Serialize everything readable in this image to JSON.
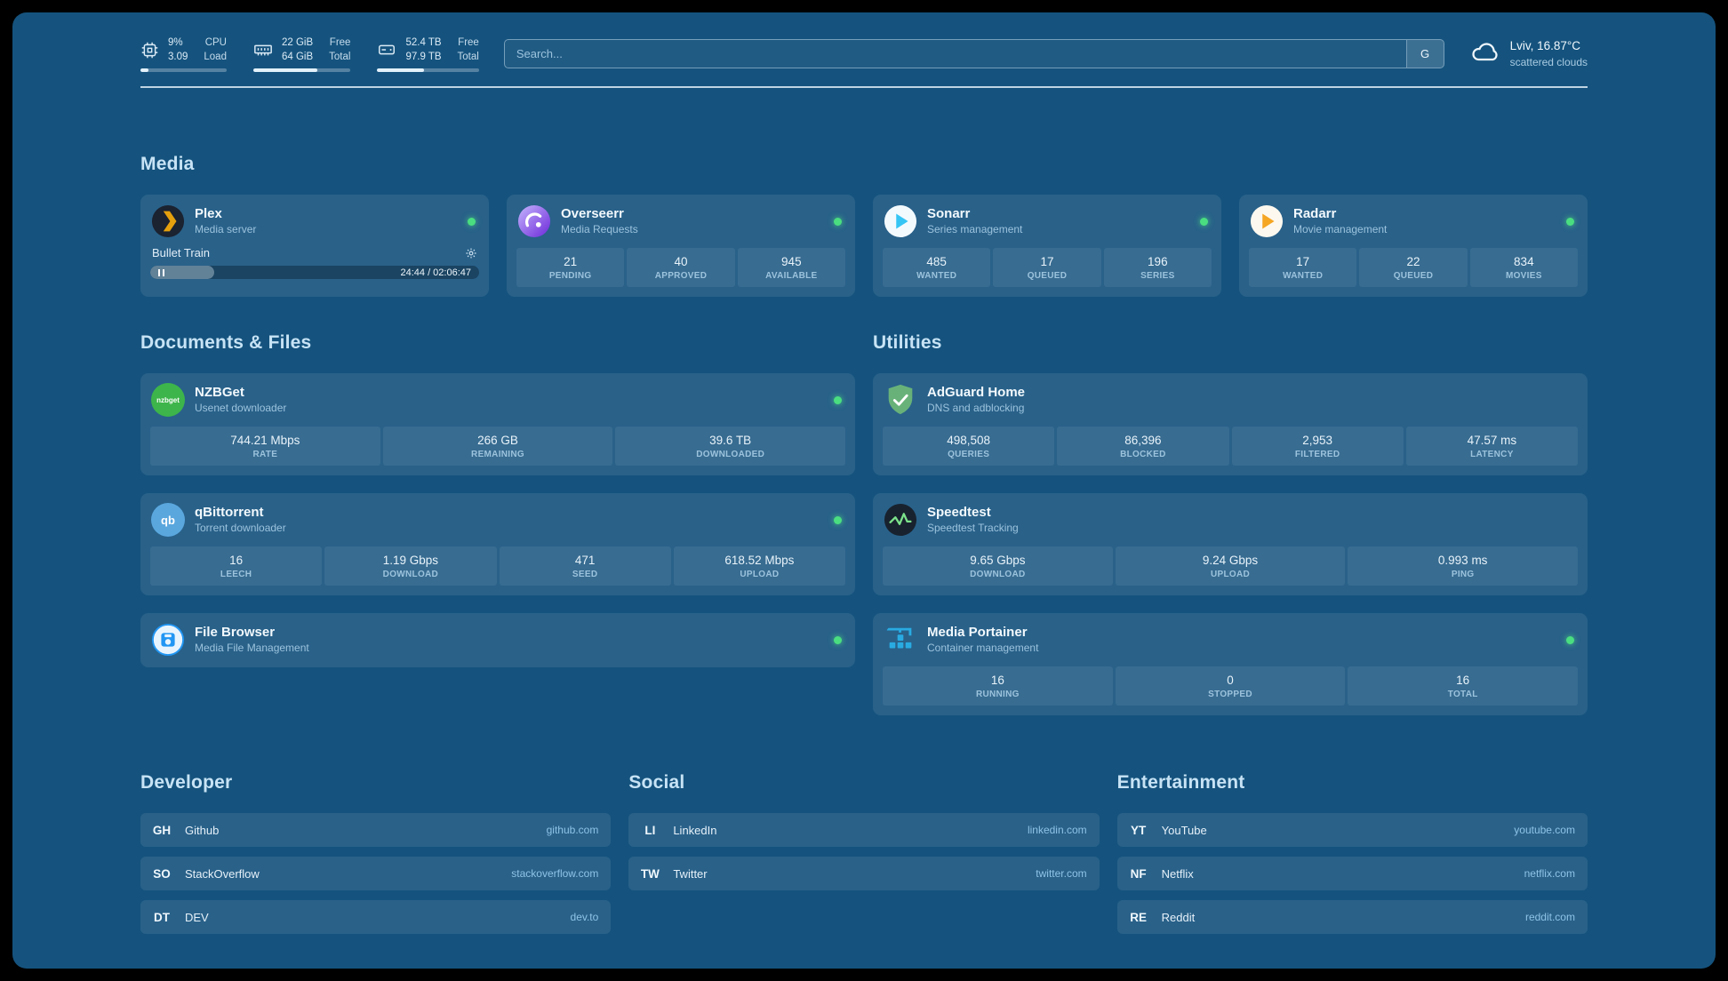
{
  "theme": {
    "background": "#15537e",
    "card_overlay": "rgba(255,255,255,0.085)",
    "status_online_color": "#4ade80",
    "plex_orange": "#e5a00d",
    "radarr_orange": "#f5a623",
    "sonarr_blue": "#35c5f4",
    "nzbget_green": "#3db54a",
    "qbittorrent_blue": "#5aa7de",
    "adguard_green": "#68b279",
    "overseerr_purple": "#6d28d9",
    "portainer_blue": "#29abe2"
  },
  "topbar": {
    "resources": [
      {
        "icon": "cpu-icon",
        "value_top": "9%",
        "value_bottom": "3.09",
        "label_top": "CPU",
        "label_bottom": "Load",
        "progress_pct": 9
      },
      {
        "icon": "memory-icon",
        "value_top": "22 GiB",
        "value_bottom": "64 GiB",
        "label_top": "Free",
        "label_bottom": "Total",
        "progress_pct": 66
      },
      {
        "icon": "disk-icon",
        "value_top": "52.4 TB",
        "value_bottom": "97.9 TB",
        "label_top": "Free",
        "label_bottom": "Total",
        "progress_pct": 46
      }
    ],
    "search": {
      "placeholder": "Search...",
      "provider_button": "G"
    },
    "weather": {
      "location": "Lviv, 16.87°C",
      "condition": "scattered clouds"
    }
  },
  "sections": {
    "media": {
      "title": "Media",
      "plex": {
        "name": "Plex",
        "desc": "Media server",
        "status": "online",
        "now_playing": {
          "title": "Bullet Train",
          "time": "24:44 / 02:06:47",
          "progress_pct": 19.5
        }
      },
      "overseerr": {
        "name": "Overseerr",
        "desc": "Media Requests",
        "status": "online",
        "stats": [
          {
            "value": "21",
            "label": "PENDING"
          },
          {
            "value": "40",
            "label": "APPROVED"
          },
          {
            "value": "945",
            "label": "AVAILABLE"
          }
        ]
      },
      "sonarr": {
        "name": "Sonarr",
        "desc": "Series management",
        "status": "online",
        "stats": [
          {
            "value": "485",
            "label": "WANTED"
          },
          {
            "value": "17",
            "label": "QUEUED"
          },
          {
            "value": "196",
            "label": "SERIES"
          }
        ]
      },
      "radarr": {
        "name": "Radarr",
        "desc": "Movie management",
        "status": "online",
        "stats": [
          {
            "value": "17",
            "label": "WANTED"
          },
          {
            "value": "22",
            "label": "QUEUED"
          },
          {
            "value": "834",
            "label": "MOVIES"
          }
        ]
      }
    },
    "documents": {
      "title": "Documents & Files",
      "nzbget": {
        "name": "NZBGet",
        "desc": "Usenet downloader",
        "status": "online",
        "icon_text": "nzbget",
        "stats": [
          {
            "value": "744.21 Mbps",
            "label": "RATE"
          },
          {
            "value": "266 GB",
            "label": "REMAINING"
          },
          {
            "value": "39.6 TB",
            "label": "DOWNLOADED"
          }
        ]
      },
      "qbittorrent": {
        "name": "qBittorrent",
        "desc": "Torrent downloader",
        "status": "online",
        "icon_text": "qb",
        "stats": [
          {
            "value": "16",
            "label": "LEECH"
          },
          {
            "value": "1.19 Gbps",
            "label": "DOWNLOAD"
          },
          {
            "value": "471",
            "label": "SEED"
          },
          {
            "value": "618.52 Mbps",
            "label": "UPLOAD"
          }
        ]
      },
      "filebrowser": {
        "name": "File Browser",
        "desc": "Media File Management",
        "status": "online"
      }
    },
    "utilities": {
      "title": "Utilities",
      "adguard": {
        "name": "AdGuard Home",
        "desc": "DNS and adblocking",
        "stats": [
          {
            "value": "498,508",
            "label": "QUERIES"
          },
          {
            "value": "86,396",
            "label": "BLOCKED"
          },
          {
            "value": "2,953",
            "label": "FILTERED"
          },
          {
            "value": "47.57 ms",
            "label": "LATENCY"
          }
        ]
      },
      "speedtest": {
        "name": "Speedtest",
        "desc": "Speedtest Tracking",
        "stats": [
          {
            "value": "9.65 Gbps",
            "label": "DOWNLOAD"
          },
          {
            "value": "9.24 Gbps",
            "label": "UPLOAD"
          },
          {
            "value": "0.993 ms",
            "label": "PING"
          }
        ]
      },
      "portainer": {
        "name": "Media Portainer",
        "desc": "Container management",
        "status": "online",
        "stats": [
          {
            "value": "16",
            "label": "RUNNING"
          },
          {
            "value": "0",
            "label": "STOPPED"
          },
          {
            "value": "16",
            "label": "TOTAL"
          }
        ]
      }
    }
  },
  "bookmarks": {
    "developer": {
      "title": "Developer",
      "items": [
        {
          "abbr": "GH",
          "name": "Github",
          "url": "github.com"
        },
        {
          "abbr": "SO",
          "name": "StackOverflow",
          "url": "stackoverflow.com"
        },
        {
          "abbr": "DT",
          "name": "DEV",
          "url": "dev.to"
        }
      ]
    },
    "social": {
      "title": "Social",
      "items": [
        {
          "abbr": "LI",
          "name": "LinkedIn",
          "url": "linkedin.com"
        },
        {
          "abbr": "TW",
          "name": "Twitter",
          "url": "twitter.com"
        }
      ]
    },
    "entertainment": {
      "title": "Entertainment",
      "items": [
        {
          "abbr": "YT",
          "name": "YouTube",
          "url": "youtube.com"
        },
        {
          "abbr": "NF",
          "name": "Netflix",
          "url": "netflix.com"
        },
        {
          "abbr": "RE",
          "name": "Reddit",
          "url": "reddit.com"
        }
      ]
    }
  }
}
